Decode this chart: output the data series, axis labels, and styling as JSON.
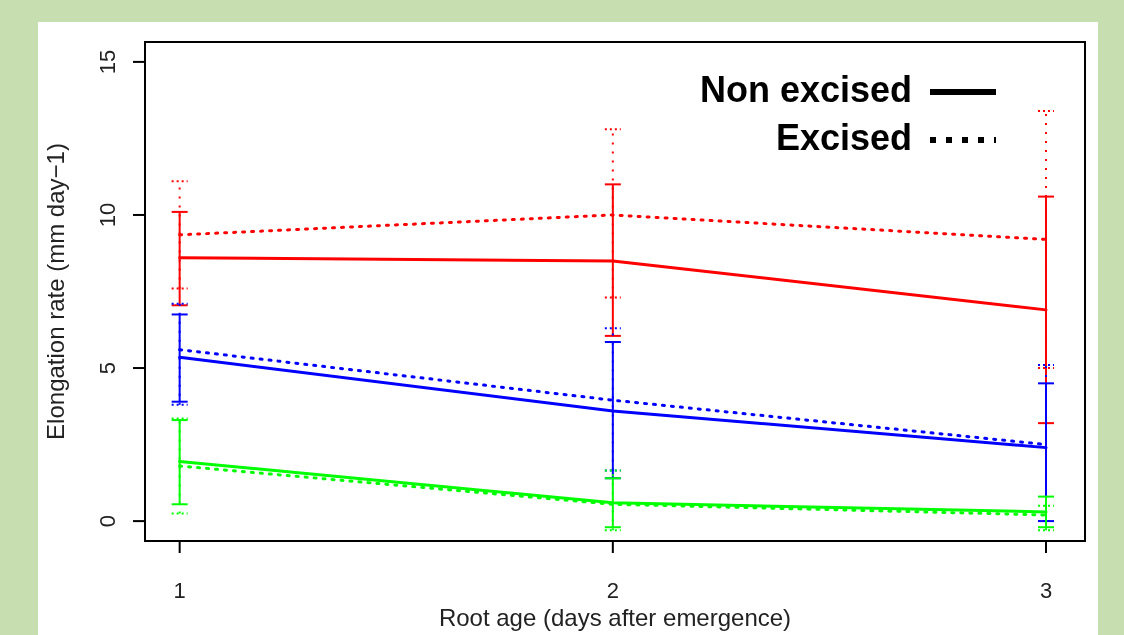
{
  "chart_data": {
    "type": "line",
    "xlabel": "Root age (days after emergence)",
    "ylabel": "Elongation rate (mm day−1)",
    "x": [
      1,
      2,
      3
    ],
    "xlim": [
      0.92,
      3.09
    ],
    "ylim": [
      -0.65,
      15.65
    ],
    "xticks": [
      1,
      2,
      3
    ],
    "yticks": [
      0,
      5,
      10,
      15
    ],
    "annotations": [
      "Non excised",
      "Excised"
    ],
    "series": [
      {
        "color": "#ff0000",
        "line_style": "solid",
        "values": [
          8.6,
          8.5,
          6.9
        ],
        "errors": [
          [
            7.05,
            10.1
          ],
          [
            6.05,
            11.0
          ],
          [
            3.2,
            10.6
          ]
        ]
      },
      {
        "color": "#ff0000",
        "line_style": "dotted",
        "values": [
          9.35,
          10.0,
          9.2
        ],
        "errors": [
          [
            7.6,
            11.1
          ],
          [
            7.3,
            12.8
          ],
          [
            5.0,
            13.4
          ]
        ]
      },
      {
        "color": "#0000ff",
        "line_style": "solid",
        "values": [
          5.35,
          3.6,
          2.4
        ],
        "errors": [
          [
            3.9,
            6.75
          ],
          [
            1.4,
            5.85
          ],
          [
            0,
            4.5
          ]
        ]
      },
      {
        "color": "#0000ff",
        "line_style": "dotted",
        "values": [
          5.6,
          3.95,
          2.5
        ],
        "errors": [
          [
            3.8,
            7.1
          ],
          [
            1.65,
            6.3
          ],
          [
            0,
            5.1
          ]
        ]
      },
      {
        "color": "#00ff00",
        "line_style": "solid",
        "values": [
          1.95,
          0.6,
          0.3
        ],
        "errors": [
          [
            0.55,
            3.3
          ],
          [
            -0.2,
            1.4
          ],
          [
            -0.2,
            0.8
          ]
        ]
      },
      {
        "color": "#00ff00",
        "line_style": "dotted",
        "values": [
          1.8,
          0.55,
          0.2
        ],
        "errors": [
          [
            0.25,
            3.35
          ],
          [
            -0.3,
            1.65
          ],
          [
            -0.3,
            0.5
          ]
        ]
      }
    ]
  }
}
